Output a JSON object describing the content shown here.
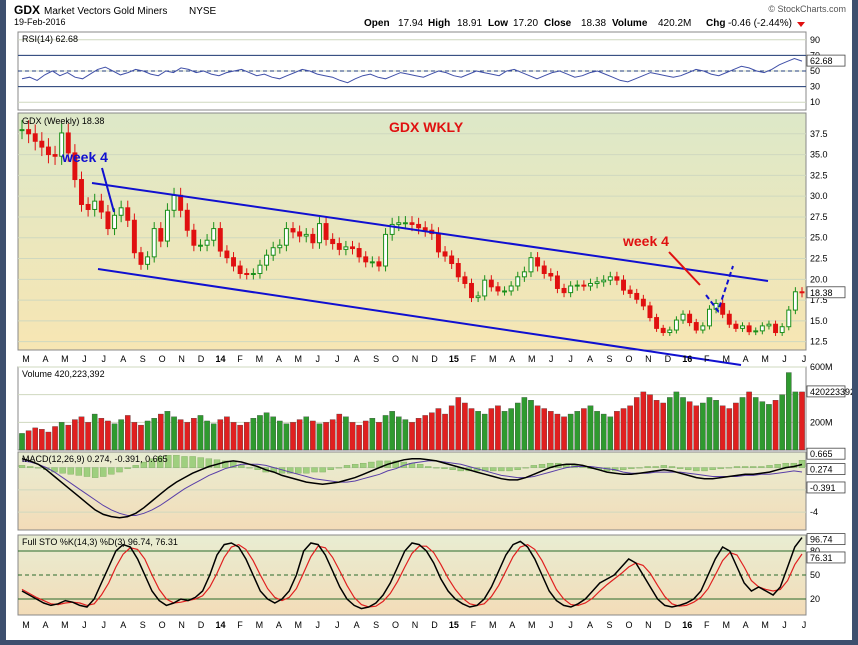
{
  "header": {
    "symbol": "GDX",
    "name": "Market Vectors Gold Miners",
    "exchange": "NYSE",
    "date": "19-Feb-2016",
    "source": "© StockCharts.com",
    "open_label": "Open",
    "open": "17.94",
    "high_label": "High",
    "high": "18.91",
    "low_label": "Low",
    "low": "17.20",
    "close_label": "Close",
    "close": "18.38",
    "volume_label": "Volume",
    "volume": "420.2M",
    "chg_label": "Chg",
    "chg": "-0.46 (-2.44%)"
  },
  "colors": {
    "up": "#1a8f1a",
    "down": "#e01010",
    "trendline": "#1010d0",
    "annotation_red": "#e01010",
    "annotation_blue": "#1010d0",
    "panel_bg_top": "#dde8c8",
    "panel_bg_bottom": "#f7e6b3"
  },
  "annotations": {
    "title": "GDX WKLY",
    "week4_left": "week 4",
    "week4_right": "week 4"
  },
  "x_axis": {
    "labels": [
      "M",
      "A",
      "M",
      "J",
      "J",
      "A",
      "S",
      "O",
      "N",
      "D",
      "14",
      "F",
      "M",
      "A",
      "M",
      "J",
      "J",
      "A",
      "S",
      "O",
      "N",
      "D",
      "15",
      "F",
      "M",
      "A",
      "M",
      "J",
      "J",
      "A",
      "S",
      "O",
      "N",
      "D",
      "16",
      "F",
      "M",
      "A",
      "M",
      "J",
      "J"
    ]
  },
  "chart_data": [
    {
      "type": "line",
      "title": "RSI(14) 62.68",
      "ylim": [
        0,
        100
      ],
      "yticks": [
        90,
        70,
        50,
        30,
        10
      ],
      "reference_lines": [
        70,
        30
      ],
      "current": "62.68",
      "values": [
        40,
        42,
        38,
        45,
        50,
        44,
        48,
        42,
        40,
        46,
        52,
        55,
        50,
        45,
        48,
        52,
        50,
        46,
        44,
        50,
        48,
        54,
        52,
        48,
        50,
        46,
        44,
        48,
        50,
        52,
        48,
        44,
        46,
        42,
        40,
        44,
        48,
        52,
        50,
        46,
        44,
        42,
        38,
        35,
        40,
        44,
        46,
        42,
        40,
        44,
        48,
        46,
        44,
        42,
        46,
        50,
        48,
        44,
        42,
        46,
        50,
        48,
        46,
        44,
        50,
        52,
        48,
        44,
        40,
        44,
        48,
        50,
        46,
        42,
        44,
        48,
        50,
        46,
        42,
        38,
        36,
        40,
        44,
        48,
        46,
        44,
        42,
        44,
        48,
        52,
        50,
        46,
        44,
        48,
        52,
        56,
        54,
        50,
        48,
        52,
        58,
        62,
        66,
        62.68
      ]
    },
    {
      "type": "candlestick",
      "title": "GDX (Weekly) 18.38",
      "ylim": [
        11.5,
        40
      ],
      "yticks": [
        37.5,
        35.0,
        32.5,
        30.0,
        27.5,
        25.0,
        22.5,
        20.0,
        17.5,
        15.0,
        12.5
      ],
      "current": "18.38",
      "closes": [
        38,
        37.5,
        36.6,
        35.9,
        35,
        34.8,
        37.6,
        35.2,
        32,
        29,
        28.4,
        29.4,
        28.1,
        26.1,
        27.7,
        28.6,
        27.1,
        23.2,
        21.8,
        22.7,
        26.1,
        24.6,
        28.3,
        30.1,
        28.3,
        25.9,
        24.1,
        24.1,
        24.7,
        26.1,
        23.4,
        22.6,
        21.6,
        20.7,
        20.6,
        20.7,
        21.7,
        22.9,
        23.8,
        24.1,
        26.1,
        25.7,
        25.2,
        25.4,
        24.4,
        26.7,
        24.8,
        24.3,
        23.6,
        23.9,
        23.7,
        22.7,
        22.1,
        22.1,
        21.6,
        25.4,
        26.6,
        26.8,
        26.8,
        26.6,
        26.2,
        25.9,
        25.5,
        23.3,
        22.8,
        21.9,
        20.3,
        19.5,
        17.8,
        18,
        19.9,
        19.1,
        18.6,
        18.6,
        19.2,
        20.3,
        20.9,
        22.6,
        21.6,
        20.7,
        20.4,
        18.9,
        18.4,
        19.2,
        19.3,
        19.2,
        19.5,
        19.7,
        19.9,
        20.3,
        19.9,
        18.7,
        18.3,
        17.6,
        16.8,
        15.4,
        14.1,
        13.6,
        13.9,
        15.1,
        15.8,
        14.8,
        13.9,
        14.4,
        16.4,
        17.1,
        15.8,
        14.6,
        14.1,
        14.4,
        13.7,
        13.8,
        14.4,
        14.6,
        13.6,
        14.3,
        16.3,
        18.5,
        18.38
      ]
    },
    {
      "type": "bar",
      "title": "Volume 420,223,392",
      "ylim": [
        0,
        600
      ],
      "yticks": [
        600,
        400,
        200
      ],
      "tick_labels": [
        "600M",
        "",
        "200M"
      ],
      "current": "420223392",
      "values": [
        120,
        140,
        160,
        150,
        130,
        170,
        200,
        180,
        220,
        240,
        200,
        260,
        230,
        210,
        190,
        220,
        250,
        200,
        180,
        210,
        230,
        260,
        280,
        240,
        220,
        200,
        230,
        250,
        210,
        190,
        220,
        240,
        200,
        180,
        200,
        230,
        250,
        270,
        240,
        210,
        190,
        200,
        220,
        240,
        210,
        190,
        200,
        220,
        260,
        240,
        200,
        180,
        210,
        230,
        200,
        250,
        280,
        240,
        220,
        200,
        230,
        250,
        270,
        300,
        260,
        320,
        380,
        340,
        300,
        280,
        260,
        300,
        320,
        280,
        300,
        340,
        380,
        360,
        320,
        300,
        280,
        260,
        240,
        260,
        280,
        300,
        320,
        280,
        260,
        240,
        280,
        300,
        320,
        380,
        420,
        400,
        360,
        340,
        380,
        420,
        380,
        350,
        320,
        340,
        380,
        360,
        320,
        300,
        340,
        380,
        420,
        380,
        350,
        330,
        360,
        400,
        560,
        420,
        420
      ]
    },
    {
      "type": "line",
      "title": "MACD(12,26,9) 0.274, -0.391, 0.665",
      "ylim": [
        -5.6,
        1.4
      ],
      "yticks": [
        0,
        -2,
        -4
      ],
      "macd_current": "0.274",
      "signal_current": "-0.391",
      "histogram_current": "0.665",
      "series": [
        {
          "name": "MACD(12,26,9)",
          "values": [
            0.8,
            0.6,
            0.3,
            -0.2,
            -0.8,
            -1.4,
            -2,
            -2.6,
            -3.2,
            -3.8,
            -4.2,
            -4.4,
            -4.5,
            -4.4,
            -4.1,
            -3.6,
            -3,
            -2.4,
            -1.8,
            -1.3,
            -0.9,
            -0.5,
            -0.2,
            0.1,
            0.3,
            0.5,
            0.6,
            0.5,
            0.3,
            0.1,
            -0.2,
            -0.4,
            -0.7,
            -0.9,
            -1.1,
            -1.3,
            -1.4,
            -1.5,
            -1.4,
            -1.3,
            -1.1,
            -0.9,
            -0.6,
            -0.3,
            0,
            0.3,
            0.5,
            0.7,
            0.8,
            0.8,
            0.7,
            0.6,
            0.4,
            0.2,
            0,
            -0.2,
            -0.4,
            -0.6,
            -0.8,
            -1,
            -1.1,
            -1.1,
            -0.9,
            -0.6,
            -0.3,
            0,
            0.2,
            0.3,
            0.3,
            0.2,
            0,
            -0.2,
            -0.4,
            -0.5,
            -0.6,
            -0.6,
            -0.5,
            -0.4,
            -0.3,
            -0.2,
            -0.3,
            -0.5,
            -0.7,
            -0.9,
            -1,
            -1,
            -0.9,
            -0.8,
            -0.7,
            -0.6,
            -0.6,
            -0.5,
            -0.4,
            -0.2,
            0,
            0.1,
            0.274
          ]
        },
        {
          "name": "signal",
          "values": [
            0.6,
            0.5,
            0.3,
            0,
            -0.4,
            -0.9,
            -1.4,
            -1.9,
            -2.4,
            -2.9,
            -3.4,
            -3.8,
            -4.1,
            -4.3,
            -4.3,
            -4.1,
            -3.8,
            -3.4,
            -2.9,
            -2.4,
            -1.9,
            -1.5,
            -1.1,
            -0.7,
            -0.4,
            -0.1,
            0.1,
            0.3,
            0.3,
            0.3,
            0.2,
            0,
            -0.2,
            -0.4,
            -0.6,
            -0.8,
            -1,
            -1.1,
            -1.2,
            -1.3,
            -1.3,
            -1.2,
            -1,
            -0.8,
            -0.6,
            -0.3,
            -0.1,
            0.2,
            0.4,
            0.5,
            0.6,
            0.6,
            0.5,
            0.4,
            0.3,
            0.1,
            -0.1,
            -0.3,
            -0.5,
            -0.7,
            -0.8,
            -0.9,
            -0.9,
            -0.8,
            -0.6,
            -0.4,
            -0.2,
            0,
            0.1,
            0.1,
            0.1,
            0,
            -0.1,
            -0.2,
            -0.4,
            -0.5,
            -0.5,
            -0.5,
            -0.4,
            -0.4,
            -0.4,
            -0.4,
            -0.5,
            -0.6,
            -0.7,
            -0.8,
            -0.8,
            -0.8,
            -0.8,
            -0.7,
            -0.7,
            -0.6,
            -0.6,
            -0.5,
            -0.4,
            -0.3,
            -0.391
          ]
        }
      ]
    },
    {
      "type": "line",
      "title": "Full STO %K(14,3) %D(3) 96.74, 76.31",
      "ylim": [
        0,
        100
      ],
      "yticks": [
        80,
        50,
        20
      ],
      "reference_lines": [
        80,
        20
      ],
      "k_current": "96.74",
      "d_current": "76.31",
      "series": [
        {
          "name": "%K(14,3)",
          "values": [
            30,
            25,
            20,
            15,
            12,
            14,
            18,
            16,
            12,
            10,
            20,
            40,
            60,
            80,
            88,
            85,
            70,
            50,
            30,
            18,
            12,
            15,
            20,
            18,
            22,
            30,
            50,
            75,
            88,
            90,
            85,
            70,
            50,
            30,
            20,
            15,
            20,
            30,
            50,
            80,
            90,
            88,
            75,
            55,
            35,
            20,
            12,
            8,
            10,
            15,
            25,
            40,
            60,
            80,
            90,
            88,
            80,
            65,
            45,
            30,
            20,
            14,
            10,
            12,
            20,
            35,
            55,
            75,
            88,
            92,
            85,
            70,
            50,
            30,
            18,
            12,
            10,
            14,
            20,
            30,
            40,
            45,
            50,
            60,
            70,
            65,
            50,
            35,
            20,
            12,
            10,
            12,
            15,
            20,
            30,
            50,
            70,
            85,
            80,
            60,
            40,
            30,
            35,
            30,
            25,
            35,
            60,
            85,
            96.74
          ]
        },
        {
          "name": "%D(3)",
          "values": [
            32,
            27,
            22,
            18,
            14,
            13,
            15,
            16,
            15,
            12,
            14,
            25,
            40,
            60,
            76,
            84,
            82,
            70,
            50,
            32,
            20,
            15,
            16,
            18,
            20,
            24,
            35,
            52,
            72,
            85,
            88,
            82,
            68,
            50,
            33,
            22,
            18,
            22,
            33,
            53,
            73,
            86,
            84,
            72,
            55,
            37,
            22,
            13,
            10,
            11,
            17,
            27,
            42,
            60,
            77,
            86,
            86,
            78,
            63,
            46,
            32,
            21,
            14,
            12,
            14,
            23,
            37,
            55,
            73,
            85,
            88,
            82,
            68,
            50,
            32,
            20,
            13,
            12,
            15,
            21,
            30,
            38,
            45,
            52,
            60,
            65,
            62,
            52,
            37,
            23,
            14,
            11,
            12,
            16,
            22,
            33,
            50,
            68,
            78,
            75,
            60,
            43,
            35,
            32,
            30,
            32,
            43,
            63,
            76.31
          ]
        }
      ]
    }
  ]
}
